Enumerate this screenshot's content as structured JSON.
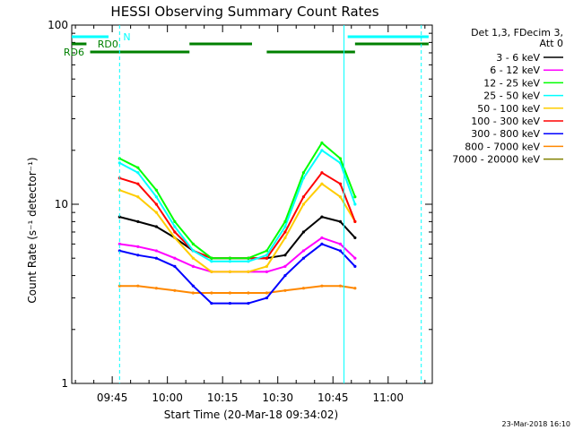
{
  "chart_data": {
    "type": "line",
    "title": "HESSI Observing Summary Count Rates",
    "xlabel": "Start Time (20-Mar-18 09:34:02)",
    "ylabel": "Count Rate (s⁻¹ detector⁻¹)",
    "y_scale": "log",
    "ylim": [
      1,
      100
    ],
    "xlim": [
      "09:34",
      "11:12"
    ],
    "x_ticks": [
      "09:45",
      "10:00",
      "10:15",
      "10:30",
      "10:45",
      "11:00"
    ],
    "y_ticks": [
      "1",
      "10",
      "100"
    ],
    "legend_header": [
      "Det 1,3, FDecim 3,",
      "Att 0"
    ],
    "legend_position": "right",
    "footer": "23-Mar-2018 16:10",
    "series": [
      {
        "name": "3 - 6 keV",
        "color": "#000000",
        "x": [
          "09:47",
          "09:52",
          "09:57",
          "10:02",
          "10:07",
          "10:12",
          "10:17",
          "10:22",
          "10:27",
          "10:32",
          "10:37",
          "10:42",
          "10:47",
          "10:51"
        ],
        "values": [
          8.5,
          8.0,
          7.5,
          6.5,
          5.5,
          5.0,
          5.0,
          5.0,
          5.0,
          5.2,
          7.0,
          8.5,
          8.0,
          6.5
        ]
      },
      {
        "name": "6 - 12 keV",
        "color": "#ff00ff",
        "x": [
          "09:47",
          "09:52",
          "09:57",
          "10:02",
          "10:07",
          "10:12",
          "10:17",
          "10:22",
          "10:27",
          "10:32",
          "10:37",
          "10:42",
          "10:47",
          "10:51"
        ],
        "values": [
          6.0,
          5.8,
          5.5,
          5.0,
          4.5,
          4.2,
          4.2,
          4.2,
          4.2,
          4.5,
          5.5,
          6.5,
          6.0,
          5.0
        ]
      },
      {
        "name": "12 - 25 keV",
        "color": "#00ff00",
        "x": [
          "09:47",
          "09:52",
          "09:57",
          "10:02",
          "10:07",
          "10:12",
          "10:17",
          "10:22",
          "10:27",
          "10:32",
          "10:37",
          "10:42",
          "10:47",
          "10:51"
        ],
        "values": [
          18,
          16,
          12,
          8,
          6,
          5,
          5,
          5,
          5.5,
          8,
          15,
          22,
          18,
          11
        ]
      },
      {
        "name": "25 - 50 keV",
        "color": "#00ffff",
        "x": [
          "09:47",
          "09:52",
          "09:57",
          "10:02",
          "10:07",
          "10:12",
          "10:17",
          "10:22",
          "10:27",
          "10:32",
          "10:37",
          "10:42",
          "10:47",
          "10:51"
        ],
        "values": [
          17,
          15,
          11,
          7.5,
          5.5,
          4.8,
          4.8,
          4.8,
          5.2,
          7.5,
          14,
          20,
          17,
          10
        ]
      },
      {
        "name": "50 - 100 keV",
        "color": "#ffcc00",
        "x": [
          "09:47",
          "09:52",
          "09:57",
          "10:02",
          "10:07",
          "10:12",
          "10:17",
          "10:22",
          "10:27",
          "10:32",
          "10:37",
          "10:42",
          "10:47",
          "10:51"
        ],
        "values": [
          12,
          11,
          9,
          6.5,
          5,
          4.2,
          4.2,
          4.2,
          4.5,
          6.5,
          10,
          13,
          11,
          8
        ]
      },
      {
        "name": "100 - 300 keV",
        "color": "#ff0000",
        "x": [
          "09:47",
          "09:52",
          "09:57",
          "10:02",
          "10:07",
          "10:12",
          "10:17",
          "10:22",
          "10:27",
          "10:32",
          "10:37",
          "10:42",
          "10:47",
          "10:51"
        ],
        "values": [
          14,
          13,
          10,
          7,
          5.5,
          5,
          5,
          5,
          5,
          7,
          11,
          15,
          13,
          8
        ]
      },
      {
        "name": "300 - 800 keV",
        "color": "#0000ff",
        "x": [
          "09:47",
          "09:52",
          "09:57",
          "10:02",
          "10:07",
          "10:12",
          "10:17",
          "10:22",
          "10:27",
          "10:32",
          "10:37",
          "10:42",
          "10:47",
          "10:51"
        ],
        "values": [
          5.5,
          5.2,
          5.0,
          4.5,
          3.5,
          2.8,
          2.8,
          2.8,
          3.0,
          4.0,
          5.0,
          6.0,
          5.5,
          4.5
        ]
      },
      {
        "name": "800 - 7000 keV",
        "color": "#ff8800",
        "x": [
          "09:47",
          "09:52",
          "09:57",
          "10:02",
          "10:07",
          "10:12",
          "10:17",
          "10:22",
          "10:27",
          "10:32",
          "10:37",
          "10:42",
          "10:47",
          "10:51"
        ],
        "values": [
          3.5,
          3.5,
          3.4,
          3.3,
          3.2,
          3.2,
          3.2,
          3.2,
          3.2,
          3.3,
          3.4,
          3.5,
          3.5,
          3.4
        ]
      },
      {
        "name": "7000 - 20000 keV",
        "color": "#808000",
        "x": [],
        "values": []
      }
    ],
    "flags": [
      {
        "label": "N",
        "color": "#00ffff",
        "segments": [
          [
            "09:34",
            "09:44"
          ],
          [
            "10:49",
            "11:11"
          ]
        ]
      },
      {
        "label": "RD0",
        "color": "#008000",
        "segments": [
          [
            "09:34",
            "09:38"
          ],
          [
            "10:06",
            "10:23"
          ],
          [
            "10:51",
            "11:11"
          ]
        ]
      },
      {
        "label": "RD6",
        "color": "#008000",
        "segments": [
          [
            "09:39",
            "10:06"
          ],
          [
            "10:27",
            "10:51"
          ]
        ]
      }
    ],
    "vertical_markers": [
      {
        "x": "09:47",
        "style": "dashed",
        "color": "#00ffff"
      },
      {
        "x": "10:48",
        "style": "solid",
        "color": "#00ffff"
      },
      {
        "x": "11:09",
        "style": "dashed",
        "color": "#00ffff"
      }
    ]
  }
}
